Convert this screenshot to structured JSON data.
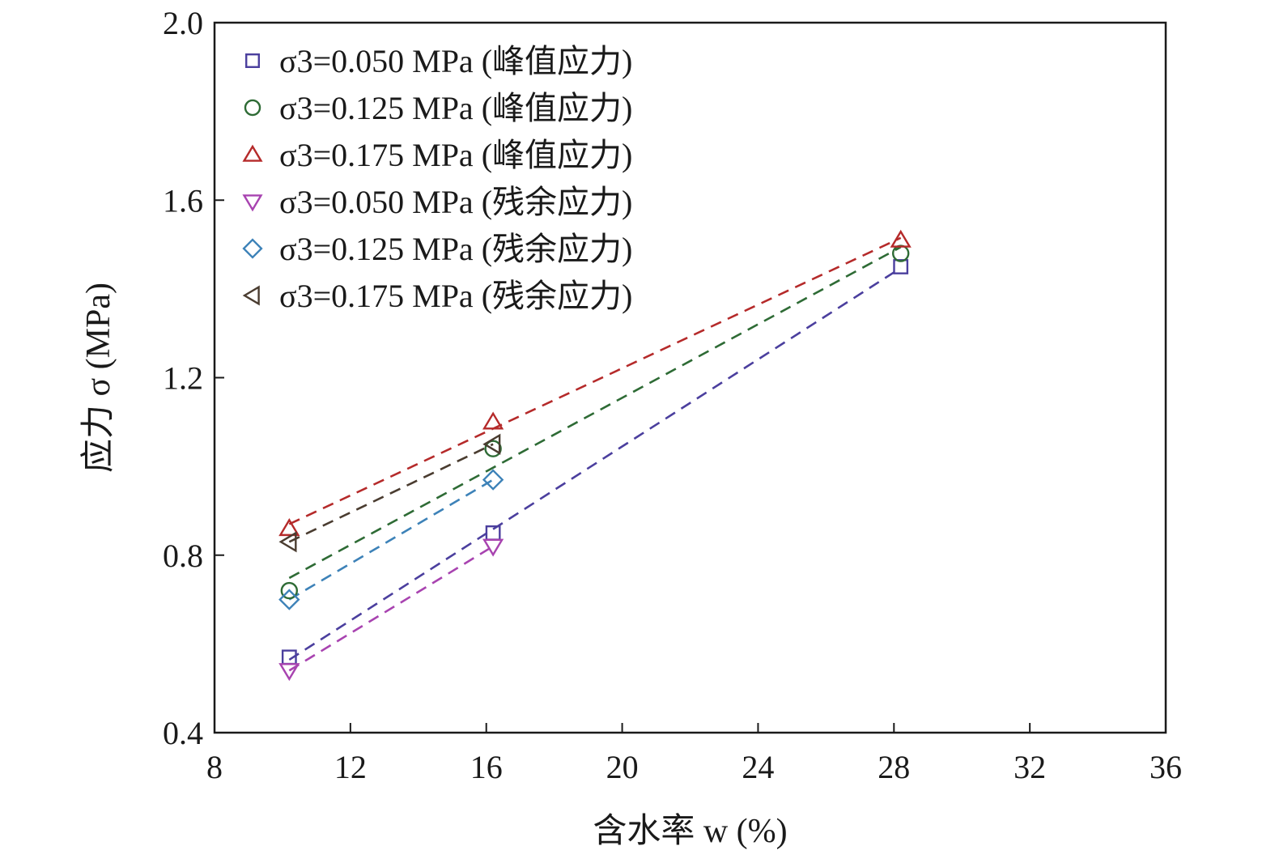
{
  "chart_data": {
    "type": "scatter",
    "title": "",
    "xlabel": "含水率 w (%)",
    "ylabel": "应力 σ (MPa)",
    "xlim": [
      8,
      36
    ],
    "ylim": [
      0.4,
      2.0
    ],
    "x_ticks": [
      "8",
      "12",
      "16",
      "20",
      "24",
      "28",
      "32",
      "36"
    ],
    "y_ticks": [
      "0.4",
      "0.8",
      "1.2",
      "1.6",
      "2.0"
    ],
    "grid": false,
    "legend_position": "top-left",
    "series": [
      {
        "name": "σ3=0.050 MPa (峰值应力)",
        "marker": "square",
        "color": "#4b3f9e",
        "x": [
          10.2,
          16.2,
          28.2
        ],
        "y": [
          0.57,
          0.85,
          1.45
        ],
        "fit": true
      },
      {
        "name": "σ3=0.125 MPa (峰值应力)",
        "marker": "circle",
        "color": "#2e6b35",
        "x": [
          10.2,
          16.2,
          28.2
        ],
        "y": [
          0.72,
          1.04,
          1.48
        ],
        "fit": true
      },
      {
        "name": "σ3=0.175 MPa (峰值应力)",
        "marker": "triangle-up",
        "color": "#b52a2a",
        "x": [
          10.2,
          16.2,
          28.2
        ],
        "y": [
          0.86,
          1.1,
          1.51
        ],
        "fit": true
      },
      {
        "name": "σ3=0.050 MPa (残余应力)",
        "marker": "triangle-down",
        "color": "#a843b0",
        "x": [
          10.2,
          16.2
        ],
        "y": [
          0.54,
          0.82
        ],
        "fit": true
      },
      {
        "name": "σ3=0.125 MPa (残余应力)",
        "marker": "diamond",
        "color": "#3d82b8",
        "x": [
          10.2,
          16.2
        ],
        "y": [
          0.7,
          0.97
        ],
        "fit": true
      },
      {
        "name": "σ3=0.175 MPa (残余应力)",
        "marker": "triangle-left",
        "color": "#4a3c30",
        "x": [
          10.2,
          16.2
        ],
        "y": [
          0.83,
          1.05
        ],
        "fit": true
      }
    ]
  }
}
